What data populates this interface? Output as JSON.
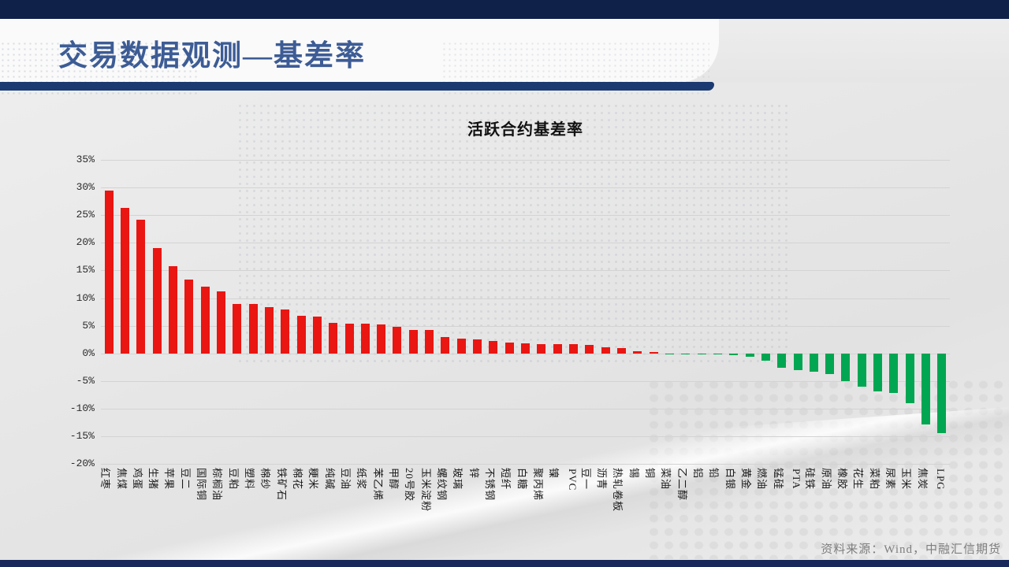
{
  "slide": {
    "title": "交易数据观测—基差率",
    "source_note": "资料来源：Wind，中融汇信期货"
  },
  "colors": {
    "top_bar": "#0f2149",
    "header_line": "#1b3a71",
    "bottom_bar": "#18285a",
    "title_text": "#3d5c95",
    "positive_bar": "#e91612",
    "negative_bar": "#00a651",
    "gridline": "#d3d3d3"
  },
  "chart_data": {
    "type": "bar",
    "title": "活跃合约基差率",
    "categories": [
      "红枣",
      "焦煤",
      "鸡蛋",
      "生猪",
      "苹果",
      "豆二",
      "国际铜",
      "棕榈油",
      "豆粕",
      "塑料",
      "棉纱",
      "铁矿石",
      "棉花",
      "粳米",
      "纯碱",
      "豆油",
      "纸浆",
      "苯乙烯",
      "甲醇",
      "20号胶",
      "玉米淀粉",
      "螺纹钢",
      "玻璃",
      "锌",
      "不锈钢",
      "短纤",
      "白糖",
      "聚丙烯",
      "镍",
      "PVC",
      "豆一",
      "沥青",
      "热轧卷板",
      "锡",
      "铜",
      "菜油",
      "乙二醇",
      "铝",
      "铅",
      "白银",
      "黄金",
      "燃油",
      "锰硅",
      "PTA",
      "硅铁",
      "原油",
      "橡胶",
      "花生",
      "菜粕",
      "尿素",
      "玉米",
      "焦炭",
      "LPG"
    ],
    "values": [
      29.4,
      26.3,
      24.2,
      19.0,
      15.8,
      13.4,
      12.0,
      11.2,
      9.0,
      8.9,
      8.4,
      7.9,
      6.8,
      6.6,
      5.5,
      5.4,
      5.3,
      5.2,
      4.8,
      4.3,
      4.2,
      3.0,
      2.7,
      2.5,
      2.3,
      2.0,
      1.8,
      1.7,
      1.6,
      1.6,
      1.5,
      1.1,
      1.0,
      0.4,
      0.3,
      -0.1,
      -0.1,
      -0.1,
      -0.2,
      -0.4,
      -0.7,
      -1.4,
      -2.7,
      -3.0,
      -3.3,
      -3.7,
      -5.1,
      -6.0,
      -6.9,
      -7.2,
      -9.1,
      -12.9,
      -14.4
    ],
    "xlabel": "",
    "ylabel": "",
    "ylim": [
      -20,
      35
    ],
    "ytick_step": 5,
    "ytick_suffix": "%",
    "grid": true,
    "legend": false,
    "positive_color": "#e91612",
    "negative_color": "#00a651"
  }
}
